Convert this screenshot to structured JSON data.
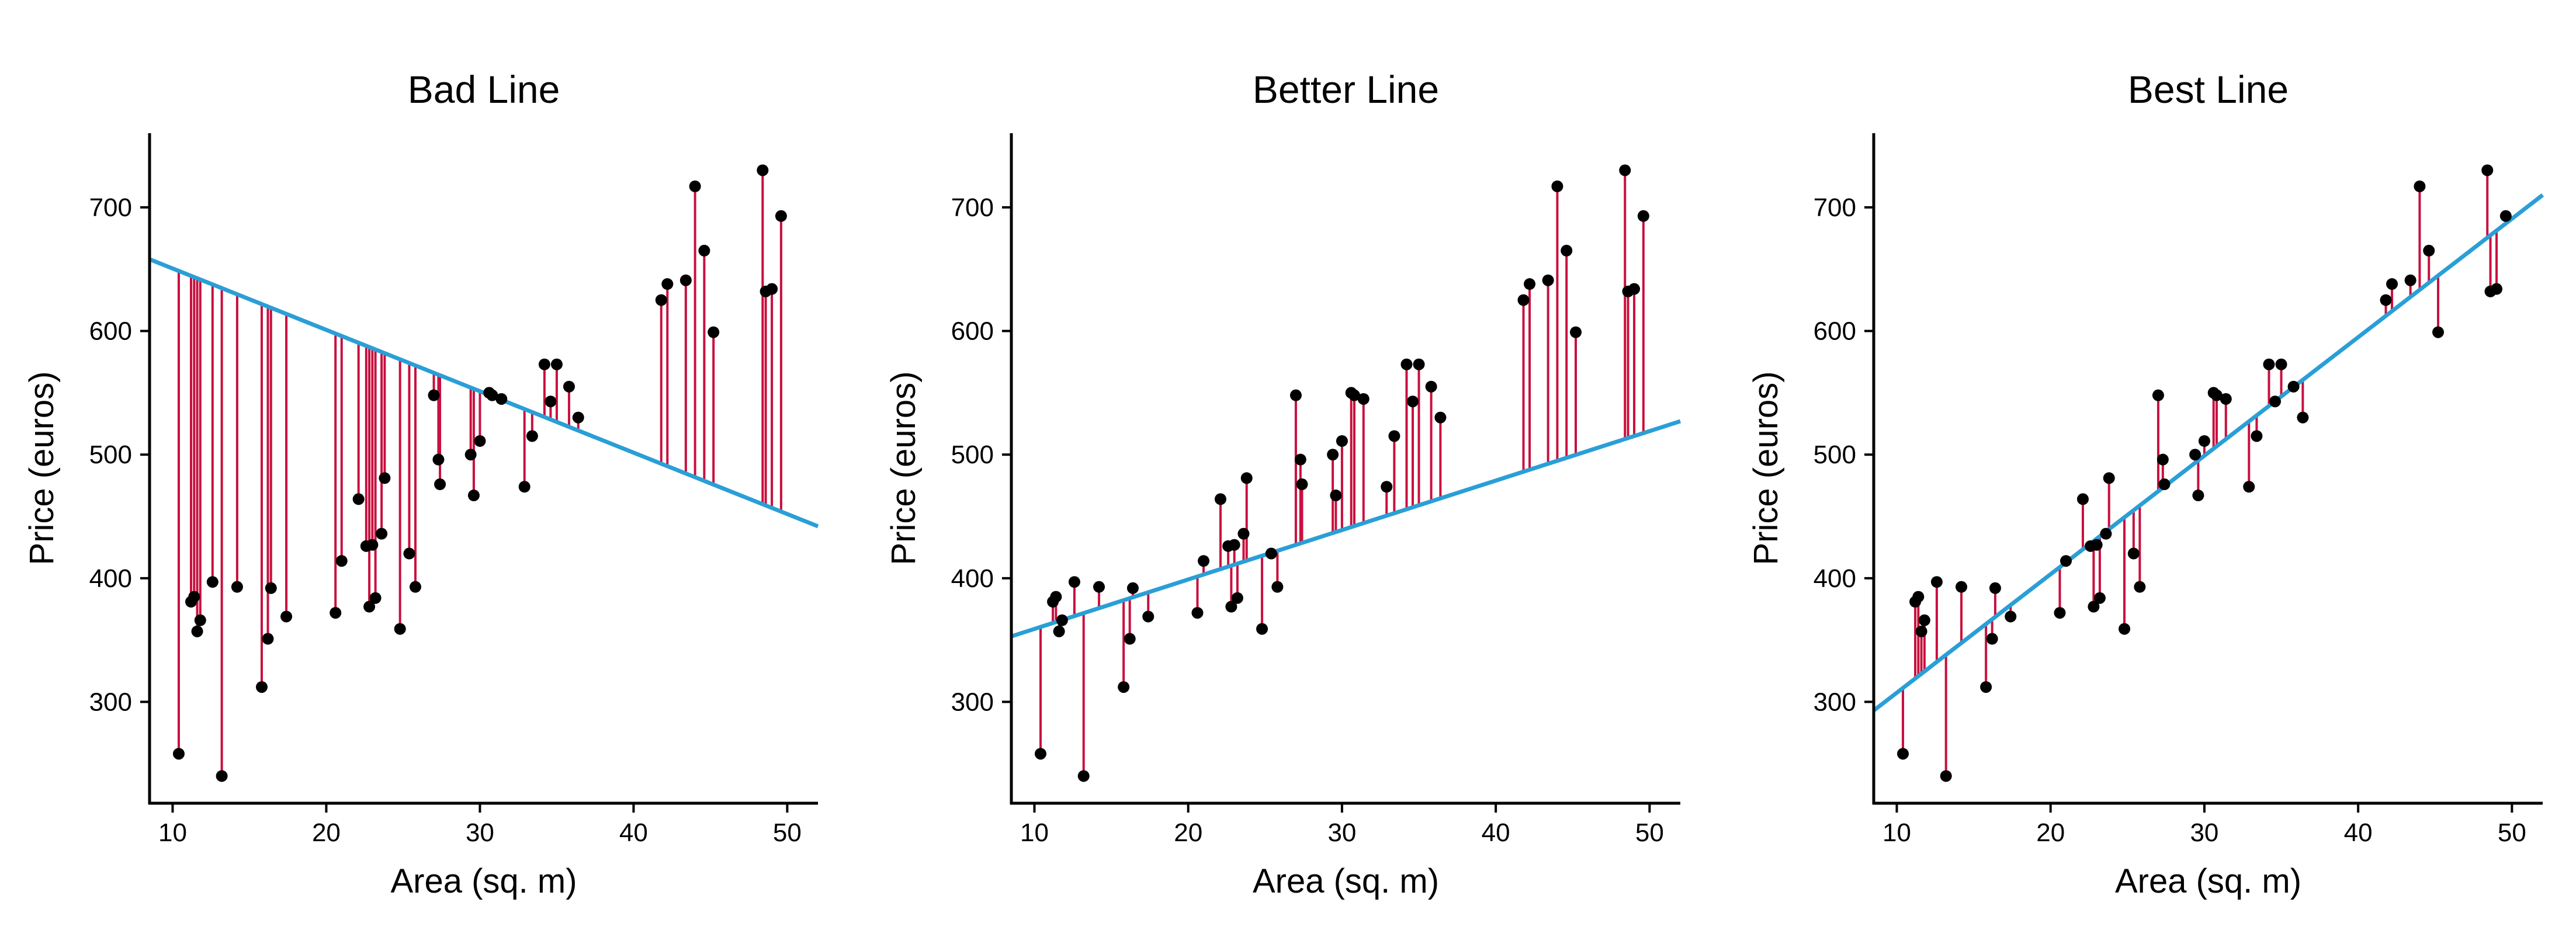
{
  "chart_data": [
    {
      "type": "scatter",
      "title": "Bad Line",
      "xlabel": "Area (sq. m)",
      "ylabel": "Price (euros)",
      "xlim": [
        8.5,
        52
      ],
      "ylim": [
        218,
        760
      ],
      "xticks": [
        10,
        20,
        30,
        40,
        50
      ],
      "yticks": [
        300,
        400,
        500,
        600,
        700
      ],
      "grid": false,
      "line": {
        "x": [
          8.5,
          52
        ],
        "y": [
          658,
          442
        ],
        "color": "#2a9fd6"
      },
      "residual_color": "#c8103e",
      "point_color": "#000000",
      "points": [
        {
          "x": 10.4,
          "y": 258
        },
        {
          "x": 11.2,
          "y": 381
        },
        {
          "x": 11.4,
          "y": 385
        },
        {
          "x": 11.6,
          "y": 357
        },
        {
          "x": 11.8,
          "y": 366
        },
        {
          "x": 12.6,
          "y": 397
        },
        {
          "x": 13.2,
          "y": 240
        },
        {
          "x": 14.2,
          "y": 393
        },
        {
          "x": 15.8,
          "y": 312
        },
        {
          "x": 16.2,
          "y": 351
        },
        {
          "x": 16.4,
          "y": 392
        },
        {
          "x": 17.4,
          "y": 369
        },
        {
          "x": 20.6,
          "y": 372
        },
        {
          "x": 21.0,
          "y": 414
        },
        {
          "x": 22.1,
          "y": 464
        },
        {
          "x": 22.6,
          "y": 426
        },
        {
          "x": 22.8,
          "y": 377
        },
        {
          "x": 23.0,
          "y": 427
        },
        {
          "x": 23.2,
          "y": 384
        },
        {
          "x": 23.6,
          "y": 436
        },
        {
          "x": 23.8,
          "y": 481
        },
        {
          "x": 24.8,
          "y": 359
        },
        {
          "x": 25.4,
          "y": 420
        },
        {
          "x": 25.8,
          "y": 393
        },
        {
          "x": 27.0,
          "y": 548
        },
        {
          "x": 27.3,
          "y": 496
        },
        {
          "x": 27.4,
          "y": 476
        },
        {
          "x": 29.4,
          "y": 500
        },
        {
          "x": 29.6,
          "y": 467
        },
        {
          "x": 30.0,
          "y": 511
        },
        {
          "x": 30.6,
          "y": 550
        },
        {
          "x": 30.8,
          "y": 548
        },
        {
          "x": 31.4,
          "y": 545
        },
        {
          "x": 32.9,
          "y": 474
        },
        {
          "x": 33.4,
          "y": 515
        },
        {
          "x": 34.2,
          "y": 573
        },
        {
          "x": 34.6,
          "y": 543
        },
        {
          "x": 35.0,
          "y": 573
        },
        {
          "x": 35.8,
          "y": 555
        },
        {
          "x": 36.4,
          "y": 530
        },
        {
          "x": 41.8,
          "y": 625
        },
        {
          "x": 42.2,
          "y": 638
        },
        {
          "x": 43.4,
          "y": 641
        },
        {
          "x": 44.0,
          "y": 717
        },
        {
          "x": 44.6,
          "y": 665
        },
        {
          "x": 45.2,
          "y": 599
        },
        {
          "x": 48.4,
          "y": 730
        },
        {
          "x": 48.6,
          "y": 632
        },
        {
          "x": 49.0,
          "y": 634
        },
        {
          "x": 49.6,
          "y": 693
        }
      ]
    },
    {
      "type": "scatter",
      "title": "Better Line",
      "xlabel": "Area (sq. m)",
      "ylabel": "Price (euros)",
      "xlim": [
        8.5,
        52
      ],
      "ylim": [
        218,
        760
      ],
      "xticks": [
        10,
        20,
        30,
        40,
        50
      ],
      "yticks": [
        300,
        400,
        500,
        600,
        700
      ],
      "grid": false,
      "line": {
        "x": [
          8.5,
          52
        ],
        "y": [
          353,
          527
        ],
        "color": "#2a9fd6"
      },
      "residual_color": "#c8103e",
      "point_color": "#000000",
      "points": [
        {
          "x": 10.4,
          "y": 258
        },
        {
          "x": 11.2,
          "y": 381
        },
        {
          "x": 11.4,
          "y": 385
        },
        {
          "x": 11.6,
          "y": 357
        },
        {
          "x": 11.8,
          "y": 366
        },
        {
          "x": 12.6,
          "y": 397
        },
        {
          "x": 13.2,
          "y": 240
        },
        {
          "x": 14.2,
          "y": 393
        },
        {
          "x": 15.8,
          "y": 312
        },
        {
          "x": 16.2,
          "y": 351
        },
        {
          "x": 16.4,
          "y": 392
        },
        {
          "x": 17.4,
          "y": 369
        },
        {
          "x": 20.6,
          "y": 372
        },
        {
          "x": 21.0,
          "y": 414
        },
        {
          "x": 22.1,
          "y": 464
        },
        {
          "x": 22.6,
          "y": 426
        },
        {
          "x": 22.8,
          "y": 377
        },
        {
          "x": 23.0,
          "y": 427
        },
        {
          "x": 23.2,
          "y": 384
        },
        {
          "x": 23.6,
          "y": 436
        },
        {
          "x": 23.8,
          "y": 481
        },
        {
          "x": 24.8,
          "y": 359
        },
        {
          "x": 25.4,
          "y": 420
        },
        {
          "x": 25.8,
          "y": 393
        },
        {
          "x": 27.0,
          "y": 548
        },
        {
          "x": 27.3,
          "y": 496
        },
        {
          "x": 27.4,
          "y": 476
        },
        {
          "x": 29.4,
          "y": 500
        },
        {
          "x": 29.6,
          "y": 467
        },
        {
          "x": 30.0,
          "y": 511
        },
        {
          "x": 30.6,
          "y": 550
        },
        {
          "x": 30.8,
          "y": 548
        },
        {
          "x": 31.4,
          "y": 545
        },
        {
          "x": 32.9,
          "y": 474
        },
        {
          "x": 33.4,
          "y": 515
        },
        {
          "x": 34.2,
          "y": 573
        },
        {
          "x": 34.6,
          "y": 543
        },
        {
          "x": 35.0,
          "y": 573
        },
        {
          "x": 35.8,
          "y": 555
        },
        {
          "x": 36.4,
          "y": 530
        },
        {
          "x": 41.8,
          "y": 625
        },
        {
          "x": 42.2,
          "y": 638
        },
        {
          "x": 43.4,
          "y": 641
        },
        {
          "x": 44.0,
          "y": 717
        },
        {
          "x": 44.6,
          "y": 665
        },
        {
          "x": 45.2,
          "y": 599
        },
        {
          "x": 48.4,
          "y": 730
        },
        {
          "x": 48.6,
          "y": 632
        },
        {
          "x": 49.0,
          "y": 634
        },
        {
          "x": 49.6,
          "y": 693
        }
      ]
    },
    {
      "type": "scatter",
      "title": "Best Line",
      "xlabel": "Area (sq. m)",
      "ylabel": "Price (euros)",
      "xlim": [
        8.5,
        52
      ],
      "ylim": [
        218,
        760
      ],
      "xticks": [
        10,
        20,
        30,
        40,
        50
      ],
      "yticks": [
        300,
        400,
        500,
        600,
        700
      ],
      "grid": false,
      "line": {
        "x": [
          8.5,
          52
        ],
        "y": [
          293,
          710
        ],
        "color": "#2a9fd6"
      },
      "residual_color": "#c8103e",
      "point_color": "#000000",
      "points": [
        {
          "x": 10.4,
          "y": 258
        },
        {
          "x": 11.2,
          "y": 381
        },
        {
          "x": 11.4,
          "y": 385
        },
        {
          "x": 11.6,
          "y": 357
        },
        {
          "x": 11.8,
          "y": 366
        },
        {
          "x": 12.6,
          "y": 397
        },
        {
          "x": 13.2,
          "y": 240
        },
        {
          "x": 14.2,
          "y": 393
        },
        {
          "x": 15.8,
          "y": 312
        },
        {
          "x": 16.2,
          "y": 351
        },
        {
          "x": 16.4,
          "y": 392
        },
        {
          "x": 17.4,
          "y": 369
        },
        {
          "x": 20.6,
          "y": 372
        },
        {
          "x": 21.0,
          "y": 414
        },
        {
          "x": 22.1,
          "y": 464
        },
        {
          "x": 22.6,
          "y": 426
        },
        {
          "x": 22.8,
          "y": 377
        },
        {
          "x": 23.0,
          "y": 427
        },
        {
          "x": 23.2,
          "y": 384
        },
        {
          "x": 23.6,
          "y": 436
        },
        {
          "x": 23.8,
          "y": 481
        },
        {
          "x": 24.8,
          "y": 359
        },
        {
          "x": 25.4,
          "y": 420
        },
        {
          "x": 25.8,
          "y": 393
        },
        {
          "x": 27.0,
          "y": 548
        },
        {
          "x": 27.3,
          "y": 496
        },
        {
          "x": 27.4,
          "y": 476
        },
        {
          "x": 29.4,
          "y": 500
        },
        {
          "x": 29.6,
          "y": 467
        },
        {
          "x": 30.0,
          "y": 511
        },
        {
          "x": 30.6,
          "y": 550
        },
        {
          "x": 30.8,
          "y": 548
        },
        {
          "x": 31.4,
          "y": 545
        },
        {
          "x": 32.9,
          "y": 474
        },
        {
          "x": 33.4,
          "y": 515
        },
        {
          "x": 34.2,
          "y": 573
        },
        {
          "x": 34.6,
          "y": 543
        },
        {
          "x": 35.0,
          "y": 573
        },
        {
          "x": 35.8,
          "y": 555
        },
        {
          "x": 36.4,
          "y": 530
        },
        {
          "x": 41.8,
          "y": 625
        },
        {
          "x": 42.2,
          "y": 638
        },
        {
          "x": 43.4,
          "y": 641
        },
        {
          "x": 44.0,
          "y": 717
        },
        {
          "x": 44.6,
          "y": 665
        },
        {
          "x": 45.2,
          "y": 599
        },
        {
          "x": 48.4,
          "y": 730
        },
        {
          "x": 48.6,
          "y": 632
        },
        {
          "x": 49.0,
          "y": 634
        },
        {
          "x": 49.6,
          "y": 693
        }
      ]
    }
  ]
}
